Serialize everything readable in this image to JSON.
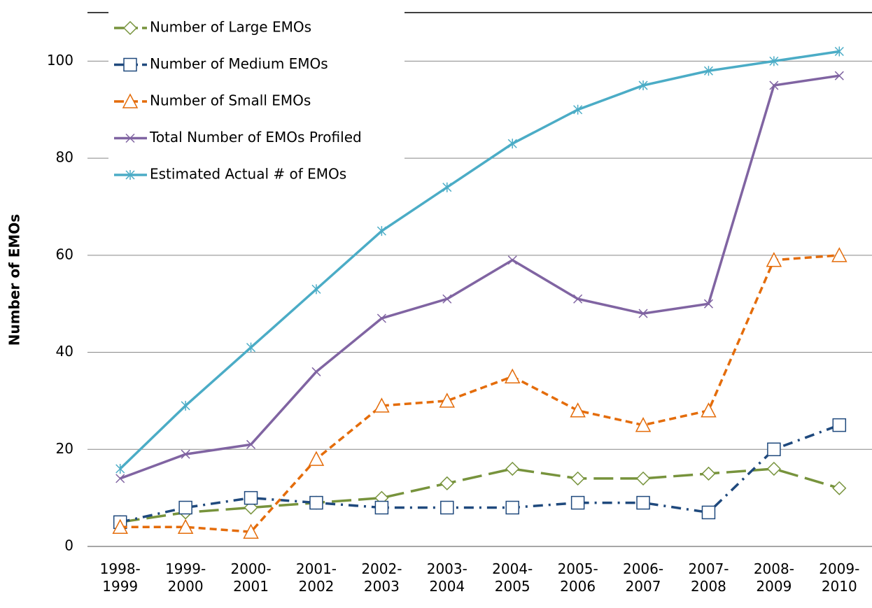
{
  "chart_data": {
    "type": "line",
    "y_label": "Number of EMOs",
    "categories": [
      "1998-1999",
      "1999-2000",
      "2000-2001",
      "2001-2002",
      "2002-2003",
      "2003-2004",
      "2004-2005",
      "2005-2006",
      "2006-2007",
      "2007-2008",
      "2008-2009",
      "2009-2010"
    ],
    "series": [
      {
        "name": "Number of Large EMOs",
        "color": "#77933c",
        "dash": "28 10",
        "marker": "diamond",
        "values": [
          5,
          7,
          8,
          9,
          10,
          13,
          16,
          14,
          14,
          15,
          16,
          12
        ]
      },
      {
        "name": "Number of Medium EMOs",
        "color": "#1f497d",
        "dash": "14 8 3 8",
        "marker": "square",
        "values": [
          5,
          8,
          10,
          9,
          8,
          8,
          8,
          9,
          9,
          7,
          20,
          25
        ]
      },
      {
        "name": "Number of Small EMOs",
        "color": "#e46c0a",
        "dash": "10 6",
        "marker": "triangle",
        "values": [
          4,
          4,
          3,
          18,
          29,
          30,
          35,
          28,
          25,
          28,
          59,
          60
        ]
      },
      {
        "name": "Total Number of EMOs Profiled",
        "color": "#8064a2",
        "dash": "none",
        "marker": "x",
        "values": [
          14,
          19,
          21,
          36,
          47,
          51,
          59,
          51,
          48,
          50,
          95,
          97
        ]
      },
      {
        "name": "Estimated Actual # of EMOs",
        "color": "#4bacc6",
        "dash": "none",
        "marker": "star",
        "values": [
          16,
          29,
          41,
          53,
          65,
          74,
          83,
          90,
          95,
          98,
          100,
          102
        ]
      }
    ],
    "ylim": [
      0,
      110
    ],
    "yticks": [
      0,
      20,
      40,
      60,
      80,
      100
    ],
    "grid": true,
    "legend": "upper left"
  }
}
